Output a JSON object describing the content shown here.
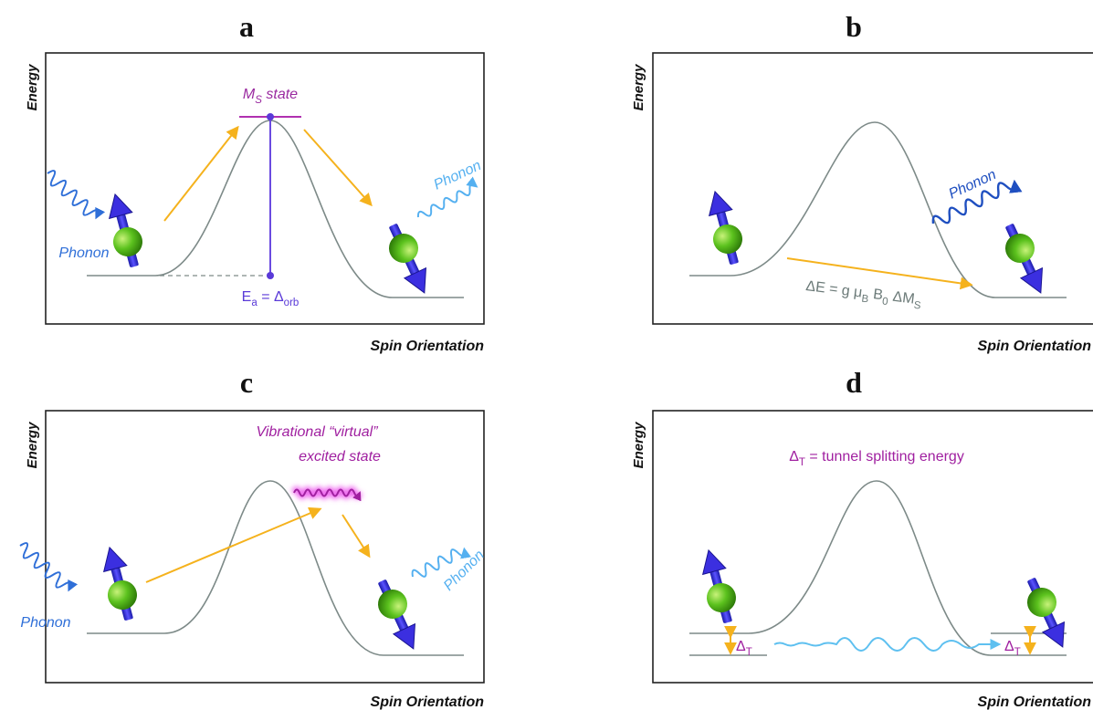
{
  "panels": [
    {
      "label": "a",
      "y_axis": "Energy",
      "x_axis": "Spin Orientation",
      "state": [
        {
          "text": "M"
        },
        {
          "sub": "S"
        },
        {
          "text": " state"
        }
      ],
      "barrier": [
        {
          "text": "E"
        },
        {
          "sub": "a"
        },
        {
          "text": " = Δ"
        },
        {
          "sub": "orb"
        }
      ],
      "phonon_in": "Phonon",
      "phonon_out": "Phonon"
    },
    {
      "label": "b",
      "y_axis": "Energy",
      "x_axis": "Spin Orientation",
      "phonon_out": "Phonon",
      "gap": [
        {
          "text": "ΔE = g μ"
        },
        {
          "sub": "B"
        },
        {
          "text": " B"
        },
        {
          "sub": "0"
        },
        {
          "text": " ΔM"
        },
        {
          "sub": "S"
        }
      ]
    },
    {
      "label": "c",
      "y_axis": "Energy",
      "x_axis": "Spin Orientation",
      "state_line1": "Vibrational “virtual”",
      "state_line2": "excited state",
      "phonon_in": "Phonon",
      "phonon_out": "Phonon"
    },
    {
      "label": "d",
      "y_axis": "Energy",
      "x_axis": "Spin Orientation",
      "splitting": [
        {
          "text": "Δ"
        },
        {
          "sub": "T"
        },
        {
          "text": " = tunnel splitting energy"
        }
      ],
      "delta_left": [
        {
          "text": "Δ"
        },
        {
          "sub": "T"
        }
      ],
      "delta_right": [
        {
          "text": "Δ"
        },
        {
          "sub": "T"
        }
      ]
    }
  ]
}
